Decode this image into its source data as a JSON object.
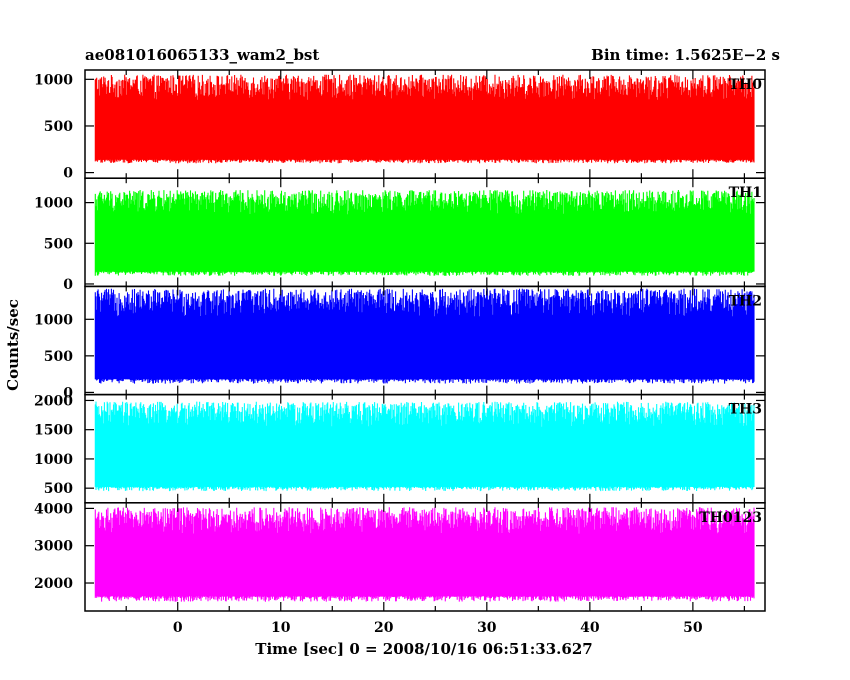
{
  "header": {
    "title": "ae081016065133_wam2_bst",
    "bin_time": "Bin time: 1.5625E−2 s"
  },
  "axes": {
    "ylabel": "Counts/sec",
    "xlabel": "Time [sec] 0 = 2008/10/16 06:51:33.627"
  },
  "chart_data": {
    "type": "line",
    "title": "ae081016065133_wam2_bst",
    "subtitle": "Bin time: 1.5625E−2 s",
    "xlabel": "Time [sec] 0 = 2008/10/16 06:51:33.627",
    "ylabel": "Counts/sec",
    "xlim": [
      -9,
      57
    ],
    "x_data_range": [
      -8,
      56
    ],
    "bin_time": 0.015625,
    "x_ticks": [
      0,
      10,
      20,
      30,
      40,
      50
    ],
    "grid": false,
    "panels": [
      {
        "name": "TH0",
        "color": "#ff0000",
        "ylim": [
          -60,
          1100
        ],
        "y_ticks": [
          0,
          500,
          1000
        ],
        "low": 100,
        "high": 1000,
        "mean": 500
      },
      {
        "name": "TH1",
        "color": "#00ff00",
        "ylim": [
          -30,
          1300
        ],
        "y_ticks": [
          0,
          500,
          1000
        ],
        "low": 100,
        "high": 1100,
        "mean": 550
      },
      {
        "name": "TH2",
        "color": "#0000ff",
        "ylim": [
          -30,
          1450
        ],
        "y_ticks": [
          0,
          500,
          1000
        ],
        "low": 120,
        "high": 1350,
        "mean": 650
      },
      {
        "name": "TH3",
        "color": "#00ffff",
        "ylim": [
          250,
          2100
        ],
        "y_ticks": [
          500,
          1000,
          1500,
          2000
        ],
        "low": 450,
        "high": 1900,
        "mean": 1100
      },
      {
        "name": "TH0123",
        "color": "#ff00ff",
        "ylim": [
          1250,
          4150
        ],
        "y_ticks": [
          2000,
          3000,
          4000
        ],
        "low": 1500,
        "high": 3900,
        "mean": 2600
      }
    ]
  }
}
